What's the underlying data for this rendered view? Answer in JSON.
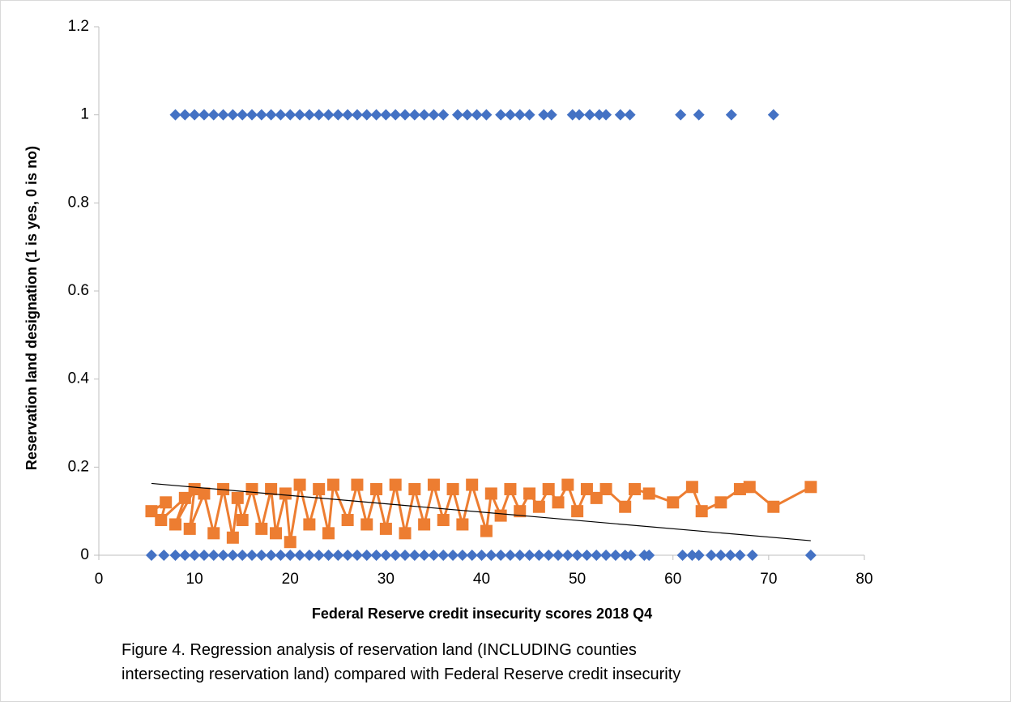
{
  "chart_data": {
    "type": "scatter",
    "x_label": "Federal Reserve credit insecurity scores 2018 Q4",
    "y_label": "Reservation land designation (1 is yes, 0 is no)",
    "caption": [
      "Figure 4. Regression analysis of reservation land (INCLUDING counties",
      "intersecting reservation land) compared with Federal Reserve credit insecurity"
    ],
    "xlim": [
      0,
      80
    ],
    "xticks": [
      0,
      10,
      20,
      30,
      40,
      50,
      60,
      70,
      80
    ],
    "ylim": [
      0,
      1.2
    ],
    "yticks": [
      0,
      0.2,
      0.4,
      0.6,
      0.8,
      1,
      1.2
    ],
    "grid": false,
    "series": [
      {
        "color": "#4472c4",
        "marker": "diamond",
        "line": false,
        "x": [
          8,
          9,
          10,
          11,
          12,
          13,
          14,
          15,
          16,
          17,
          18,
          19,
          20,
          21,
          22,
          23,
          24,
          25,
          26,
          27,
          28,
          29,
          30,
          31,
          32,
          33,
          34,
          35,
          36,
          37.5,
          38.5,
          39.5,
          40.5,
          42,
          43,
          44,
          45,
          46.5,
          47.3,
          49.5,
          50.2,
          51.3,
          52.3,
          53,
          54.5,
          55.5,
          60.8,
          62.7,
          66.1,
          70.5
        ],
        "values": [
          1,
          1,
          1,
          1,
          1,
          1,
          1,
          1,
          1,
          1,
          1,
          1,
          1,
          1,
          1,
          1,
          1,
          1,
          1,
          1,
          1,
          1,
          1,
          1,
          1,
          1,
          1,
          1,
          1,
          1,
          1,
          1,
          1,
          1,
          1,
          1,
          1,
          1,
          1,
          1,
          1,
          1,
          1,
          1,
          1,
          1,
          1,
          1,
          1,
          1
        ]
      },
      {
        "color": "#4472c4",
        "marker": "diamond",
        "line": false,
        "x": [
          5.5,
          6.8,
          8,
          9,
          10,
          11,
          12,
          13,
          14,
          15,
          16,
          17,
          18,
          19,
          20,
          21,
          22,
          23,
          24,
          25,
          26,
          27,
          28,
          29,
          30,
          31,
          32,
          33,
          34,
          35,
          36,
          37,
          38,
          39,
          40,
          41,
          42,
          43,
          44,
          45,
          46,
          47,
          48,
          49,
          50,
          51,
          52,
          53,
          54,
          55,
          55.6,
          57,
          57.5,
          61,
          62,
          62.7,
          64,
          65,
          66,
          67,
          68.3,
          74.4
        ],
        "values": [
          0,
          0,
          0,
          0,
          0,
          0,
          0,
          0,
          0,
          0,
          0,
          0,
          0,
          0,
          0,
          0,
          0,
          0,
          0,
          0,
          0,
          0,
          0,
          0,
          0,
          0,
          0,
          0,
          0,
          0,
          0,
          0,
          0,
          0,
          0,
          0,
          0,
          0,
          0,
          0,
          0,
          0,
          0,
          0,
          0,
          0,
          0,
          0,
          0,
          0,
          0,
          0,
          0,
          0,
          0,
          0,
          0,
          0,
          0,
          0,
          0,
          0
        ]
      },
      {
        "color": "#ed7d31",
        "marker": "square",
        "line": true,
        "x": [
          5.5,
          7,
          6.5,
          9,
          8,
          10,
          9.5,
          11,
          12,
          13,
          14,
          14.5,
          15,
          16,
          17,
          18,
          18.5,
          19.5,
          20,
          21,
          22,
          23,
          24,
          24.5,
          26,
          27,
          28,
          29,
          30,
          31,
          32,
          33,
          34,
          35,
          36,
          37,
          38,
          39,
          40.5,
          41,
          42,
          43,
          44,
          45,
          46,
          47,
          48,
          49,
          50,
          51,
          52,
          53,
          55,
          56,
          57.5,
          60,
          62,
          63,
          65,
          67,
          68,
          70.5,
          74.4
        ],
        "values": [
          0.1,
          0.12,
          0.08,
          0.13,
          0.07,
          0.15,
          0.06,
          0.14,
          0.05,
          0.15,
          0.04,
          0.13,
          0.08,
          0.15,
          0.06,
          0.15,
          0.05,
          0.14,
          0.03,
          0.16,
          0.07,
          0.15,
          0.05,
          0.16,
          0.08,
          0.16,
          0.07,
          0.15,
          0.06,
          0.16,
          0.05,
          0.15,
          0.07,
          0.16,
          0.08,
          0.15,
          0.07,
          0.16,
          0.055,
          0.14,
          0.09,
          0.15,
          0.1,
          0.14,
          0.11,
          0.15,
          0.12,
          0.16,
          0.1,
          0.15,
          0.13,
          0.15,
          0.11,
          0.15,
          0.14,
          0.12,
          0.155,
          0.1,
          0.12,
          0.15,
          0.155,
          0.11,
          0.155
        ]
      },
      {
        "color": "#000000",
        "marker": "none",
        "line": true,
        "x": [
          5.5,
          74.4
        ],
        "values": [
          0.163,
          0.033
        ]
      }
    ]
  }
}
